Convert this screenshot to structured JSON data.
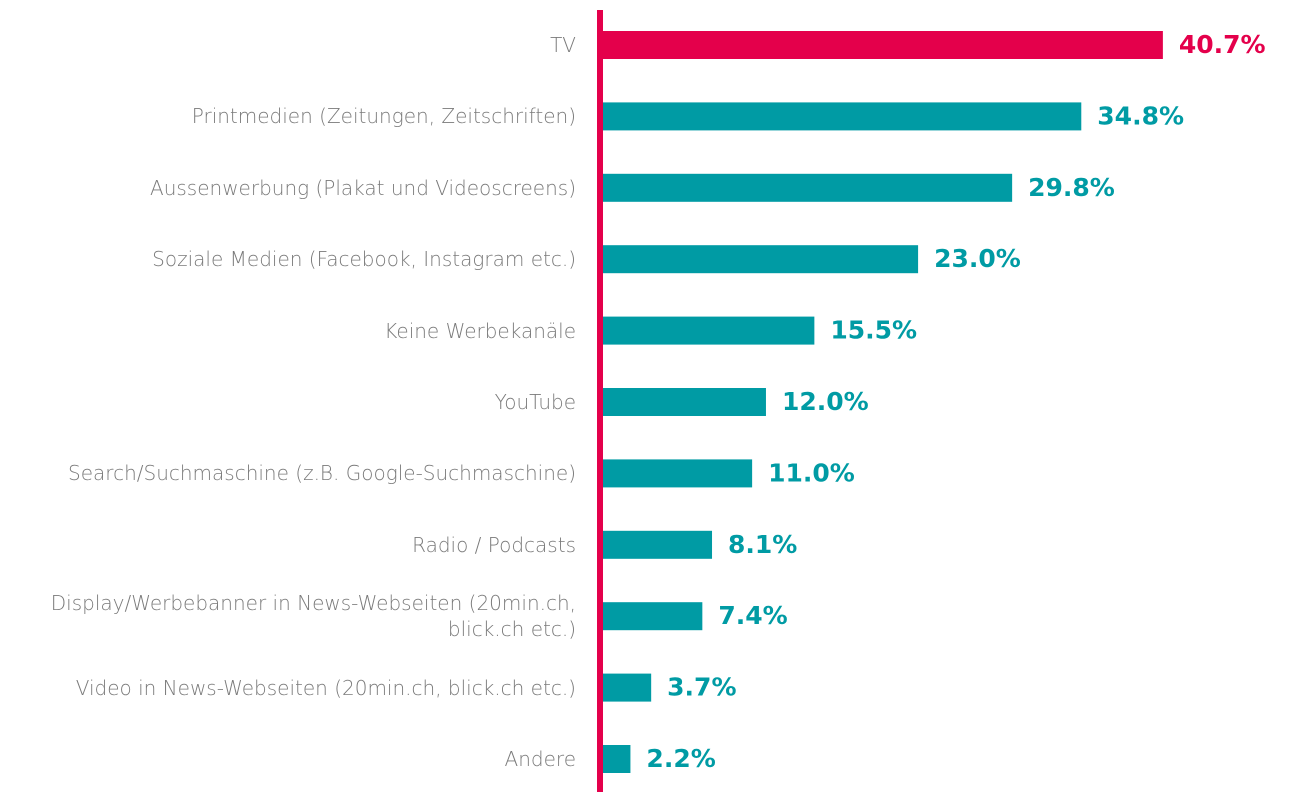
{
  "chart_data": {
    "type": "hbar",
    "categories": [
      "TV",
      "Printmedien (Zeitungen, Zeitschriften)",
      "Aussenwerbung (Plakat und Videoscreens)",
      "Soziale Medien (Facebook, Instagram etc.)",
      "Keine Werbekanäle",
      "YouTube",
      "Search/Suchmaschine (z.B. Google-Suchmaschine)",
      "Radio / Podcasts",
      "Display/Werbebanner in News-Webseiten (20min.ch, blick.ch etc.)",
      "Video in News-Webseiten (20min.ch, blick.ch etc.)",
      "Andere"
    ],
    "values": [
      40.7,
      34.8,
      29.8,
      23.0,
      15.5,
      12.0,
      11.0,
      8.1,
      7.4,
      3.7,
      2.2
    ],
    "value_labels": [
      "40.7%",
      "34.8%",
      "29.8%",
      "23.0%",
      "15.5%",
      "12.0%",
      "11.0%",
      "8.1%",
      "7.4%",
      "3.7%",
      "2.2%"
    ],
    "colors": [
      "#e4004b",
      "#009ba4",
      "#009ba4",
      "#009ba4",
      "#009ba4",
      "#009ba4",
      "#009ba4",
      "#009ba4",
      "#009ba4",
      "#009ba4",
      "#009ba4"
    ],
    "axis_color": "#e4004b",
    "xlim": [
      0,
      42
    ]
  }
}
